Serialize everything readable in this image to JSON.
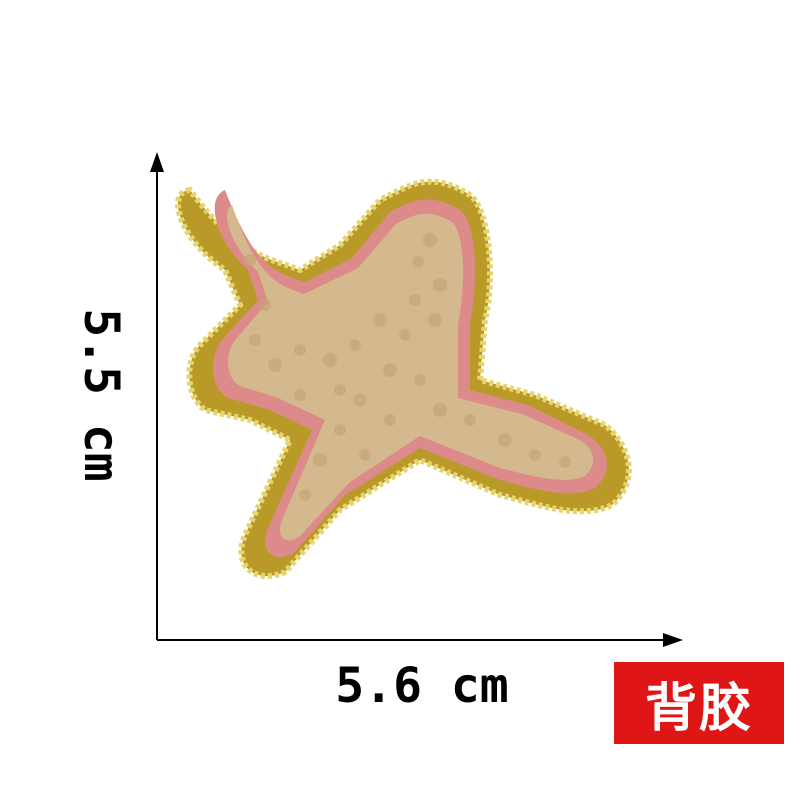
{
  "measurements": {
    "height_label": "5.5 cm",
    "width_label": "5.6 cm"
  },
  "badge": {
    "text": "背胶",
    "color": "#e01515"
  },
  "patch": {
    "subject": "airplane-icon",
    "colors": {
      "fill": "#d4b88e",
      "inner_outline": "#dd8a8a",
      "border": "#b99a28",
      "glitter": "#e6d56a"
    }
  },
  "axis_color": "#000000"
}
